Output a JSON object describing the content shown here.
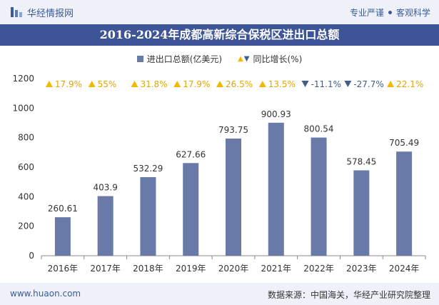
{
  "header": {
    "brand": "华经情报网",
    "slogan_left": "专业严谨",
    "slogan_right": "客观科学"
  },
  "title_bar": {
    "title": "2016-2024年成都高新综合保税区进出口总额"
  },
  "legend": {
    "bar_label": "进出口总额(亿美元)",
    "growth_label": "同比增长(%)"
  },
  "footer": {
    "site": "www.huaon.com",
    "source": "数据来源：中国海关，华经产业研究院整理"
  },
  "colors": {
    "bar": "#6a7aa8",
    "up": "#f5b800",
    "down": "#3f5f8a",
    "title_bg": "#3d5597"
  },
  "chart_data": {
    "type": "bar",
    "categories": [
      "2016年",
      "2017年",
      "2018年",
      "2019年",
      "2020年",
      "2021年",
      "2022年",
      "2023年",
      "2024年"
    ],
    "series": [
      {
        "name": "进出口总额(亿美元)",
        "values": [
          260.61,
          403.9,
          532.29,
          627.66,
          793.75,
          900.93,
          800.54,
          578.45,
          705.49
        ]
      },
      {
        "name": "同比增长(%)",
        "values": [
          17.9,
          55,
          31.8,
          17.9,
          26.5,
          13.5,
          -11.1,
          -27.7,
          22.1
        ]
      }
    ],
    "value_labels": [
      "260.61",
      "403.9",
      "532.29",
      "627.66",
      "793.75",
      "900.93",
      "800.54",
      "578.45",
      "705.49"
    ],
    "growth_labels": [
      "17.9%",
      "55%",
      "31.8%",
      "17.9%",
      "26.5%",
      "13.5%",
      "-11.1%",
      "-27.7%",
      "22.1%"
    ],
    "yticks": [
      "0",
      "200",
      "400",
      "600",
      "800",
      "1000",
      "1200"
    ],
    "ylim": [
      0,
      1200
    ],
    "grid": false,
    "legend_position": "top-center"
  }
}
